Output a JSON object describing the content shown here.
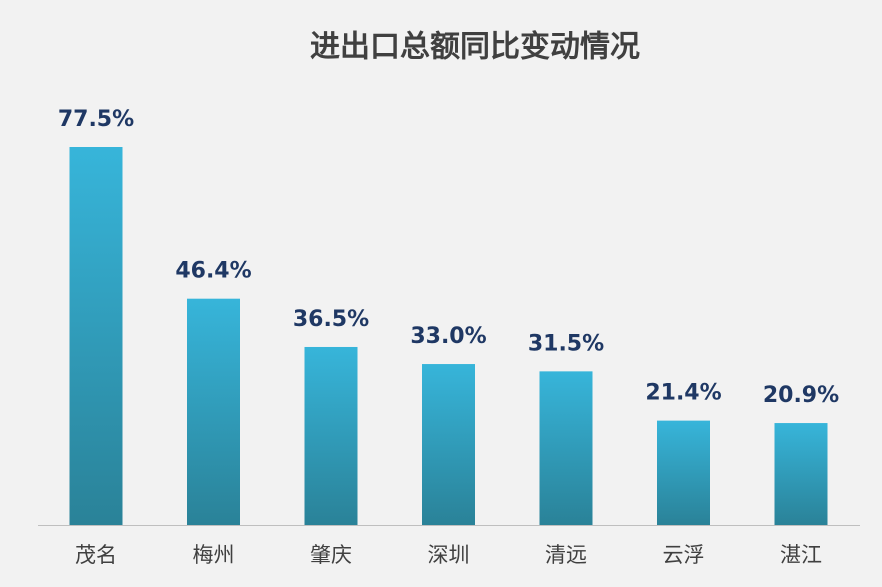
{
  "chart_data": {
    "type": "bar",
    "title": "进出口总额同比变动情况",
    "categories": [
      "茂名",
      "梅州",
      "肇庆",
      "深圳",
      "清远",
      "云浮",
      "湛江"
    ],
    "values": [
      77.5,
      46.4,
      36.5,
      33.0,
      31.5,
      21.4,
      20.9
    ],
    "value_labels": [
      "77.5%",
      "46.4%",
      "36.5%",
      "33.0%",
      "31.5%",
      "21.4%",
      "20.9%"
    ],
    "color": "#37b5da"
  }
}
